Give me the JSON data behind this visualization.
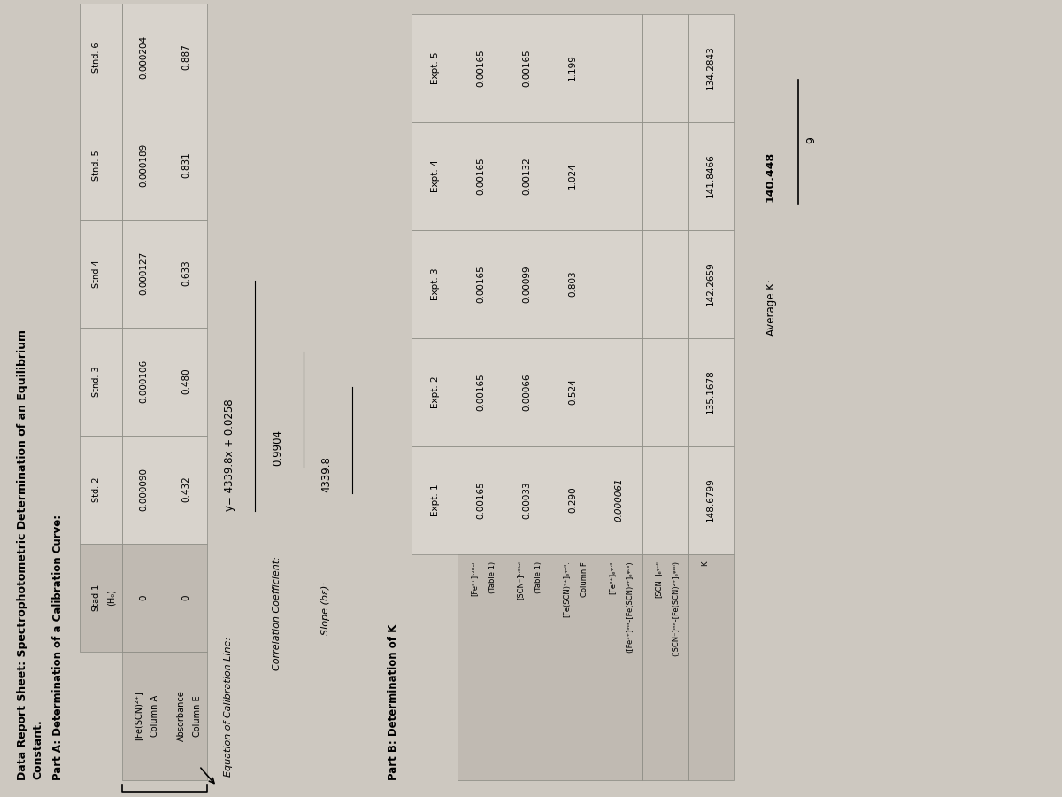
{
  "title": "Data Report Sheet: Spectrophotometric Determination of an Equilibrium\nConstant.",
  "part_a_title": "Part A: Determination of a Calibration Curve:",
  "part_b_title": "Part B: Determination of K",
  "bg_color": "#cdc8c0",
  "cell_light": "#d8d3cc",
  "cell_dark": "#c0bab2",
  "part_a": {
    "col_headers": [
      "Stad.1\n(H₀)",
      "Std. 2",
      "Stnd. 3",
      "Stnd 4",
      "Stnd. 5",
      "Stnd. 6"
    ],
    "fe_scn_row": [
      "0",
      "0.000090",
      "0.000106",
      "0.000127",
      "0.000189",
      "0.000204"
    ],
    "abs_row": [
      "0",
      "0.432",
      "0.480",
      "0.633",
      "0.831",
      "0.887"
    ]
  },
  "equation": "y= 4339.8x + 0.0258",
  "corr_coeff": "0.9904",
  "slope": "4339.8",
  "part_b": {
    "col_headers": [
      "Expt. 1",
      "Expt. 2",
      "Expt. 3",
      "Expt. 4",
      "Expt. 5"
    ],
    "fe3_initial": [
      "0.00165",
      "0.00165",
      "0.00165",
      "0.00165",
      "0.00165"
    ],
    "scn_initial": [
      "0.00033",
      "0.00066",
      "0.00099",
      "0.00132",
      "0.00165"
    ],
    "fe_scn_equil": [
      "0.290",
      "0.524",
      "0.803",
      "1.024",
      "1.199"
    ],
    "col_f": [
      "0.000061",
      "",
      "",
      "",
      ""
    ],
    "fe3_equil": [
      "",
      "",
      "",
      "",
      ""
    ],
    "scn_equil": [
      "",
      "",
      "",
      "",
      ""
    ],
    "K": [
      "148.6799",
      "135.1678",
      "142.2659",
      "141.8466",
      "134.2843"
    ]
  },
  "average_k_num": "140.448",
  "average_k_den": "9"
}
